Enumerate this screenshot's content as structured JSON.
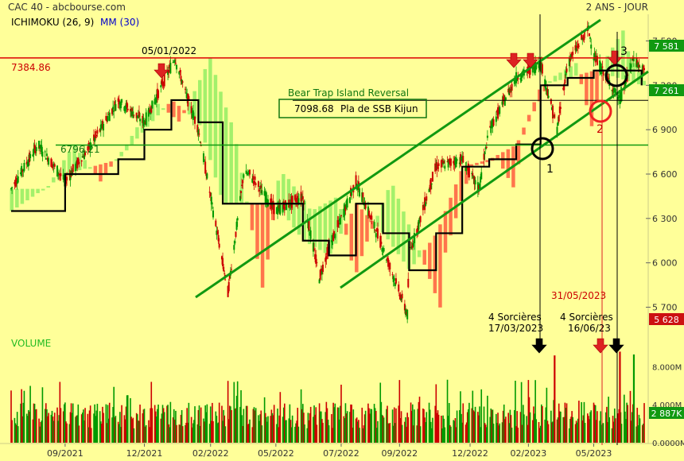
{
  "header": {
    "title": "CAC 40 - abcbourse.com",
    "period": "2 ANS - JOUR",
    "ichimoku_label": "ICHIMOKU (26, 9)",
    "mm_label": "MM (30)"
  },
  "colors": {
    "background": "#ffff99",
    "candle_up": "#009900",
    "candle_down": "#cc0000",
    "cloud_bull": "#99ee66",
    "cloud_bear": "#ff6644",
    "kijun": "#000000",
    "channel": "#119911",
    "resistance": "#dd0000",
    "support": "#119911",
    "price_badge_green": "#119911",
    "price_badge_red": "#cc1111"
  },
  "chart_data": [
    {
      "type": "candlestick",
      "name": "CAC 40 daily",
      "ylim": [
        5520,
        7680
      ],
      "x_ticks": [
        "09/2021",
        "12/2021",
        "02/2022",
        "05/2022",
        "07/2022",
        "09/2022",
        "12/2022",
        "02/2023",
        "05/2023"
      ],
      "y_ticks": [
        5700,
        6000,
        6300,
        6600,
        6900,
        7200,
        7500
      ],
      "y_tick_labels": [
        "5 700",
        "6 000",
        "6 300",
        "6 600",
        "6 900",
        "7 200",
        "7 500"
      ],
      "price_badges": [
        {
          "label": "7 581",
          "value": 7581,
          "color": "green"
        },
        {
          "label": "7 261",
          "value": 7261,
          "color": "green"
        },
        {
          "label": "5 628",
          "value": 5628,
          "color": "red"
        }
      ],
      "close_path": [
        [
          "2021-07",
          6500
        ],
        [
          "2021-08",
          6800
        ],
        [
          "2021-09",
          6550
        ],
        [
          "2021-10",
          6800
        ],
        [
          "2021-11",
          7100
        ],
        [
          "2021-12",
          6950
        ],
        [
          "2022-01-05",
          7384
        ],
        [
          "2022-01-20",
          7100
        ],
        [
          "2022-02",
          6900
        ],
        [
          "2022-03-07",
          5800
        ],
        [
          "2022-03-25",
          6600
        ],
        [
          "2022-04",
          6600
        ],
        [
          "2022-05",
          6350
        ],
        [
          "2022-06",
          6450
        ],
        [
          "2022-06-20",
          5900
        ],
        [
          "2022-07",
          6100
        ],
        [
          "2022-08",
          6550
        ],
        [
          "2022-09",
          6100
        ],
        [
          "2022-09-29",
          5650
        ],
        [
          "2022-10",
          6050
        ],
        [
          "2022-11",
          6650
        ],
        [
          "2022-12",
          6700
        ],
        [
          "2022-12-20",
          6500
        ],
        [
          "2023-01",
          6900
        ],
        [
          "2023-02",
          7250
        ],
        [
          "2023-03-01",
          7350
        ],
        [
          "2023-03-20",
          6900
        ],
        [
          "2023-04",
          7350
        ],
        [
          "2023-04-25",
          7580
        ],
        [
          "2023-05",
          7400
        ],
        [
          "2023-05-31",
          7100
        ],
        [
          "2023-06-16",
          7390
        ],
        [
          "2023-06-25",
          7300
        ]
      ],
      "kijun_path": [
        [
          "2021-07",
          6350
        ],
        [
          "2021-09",
          6600
        ],
        [
          "2021-11",
          6700
        ],
        [
          "2021-12",
          6900
        ],
        [
          "2022-01",
          7100
        ],
        [
          "2022-02",
          6950
        ],
        [
          "2022-03",
          6400
        ],
        [
          "2022-05",
          6400
        ],
        [
          "2022-06",
          6150
        ],
        [
          "2022-07",
          6050
        ],
        [
          "2022-08",
          6400
        ],
        [
          "2022-09",
          6200
        ],
        [
          "2022-10",
          5950
        ],
        [
          "2022-11",
          6200
        ],
        [
          "2022-12",
          6650
        ],
        [
          "2023-01",
          6700
        ],
        [
          "2023-02",
          6800
        ],
        [
          "2023-03",
          7200
        ],
        [
          "2023-04",
          7250
        ],
        [
          "2023-05",
          7300
        ],
        [
          "2023-06-25",
          7200
        ]
      ],
      "horizontal_levels": [
        {
          "value": 7384.86,
          "label": "7384.86",
          "color": "red"
        },
        {
          "value": 6796.21,
          "label": "6796.21",
          "color": "green"
        },
        {
          "value": 7098.68,
          "label": "",
          "color": "black"
        }
      ],
      "annotations": {
        "date_top": "05/01/2022",
        "bear_trap": "Bear Trap  Island Reversal",
        "box_value": "7098.68",
        "box_text": "Pla de SSB Kijun",
        "date_red": "31/05/2023",
        "sorcieres_1_line1": "4 Sorcières",
        "sorcieres_1_line2": "17/03/2023",
        "sorcieres_2_line1": "4 Sorcières",
        "sorcieres_2_line2": "16/06/23",
        "circle_1": "1",
        "circle_2": "2",
        "circle_3": "3"
      }
    },
    {
      "type": "bar",
      "name": "volume",
      "title": "VOLUME",
      "y_ticks": [
        0,
        4000000,
        8000000
      ],
      "y_tick_labels": [
        "0.0000M",
        "4.000M",
        "8.000M"
      ],
      "last_badge": "2 887K",
      "last_value": 2887000
    }
  ]
}
